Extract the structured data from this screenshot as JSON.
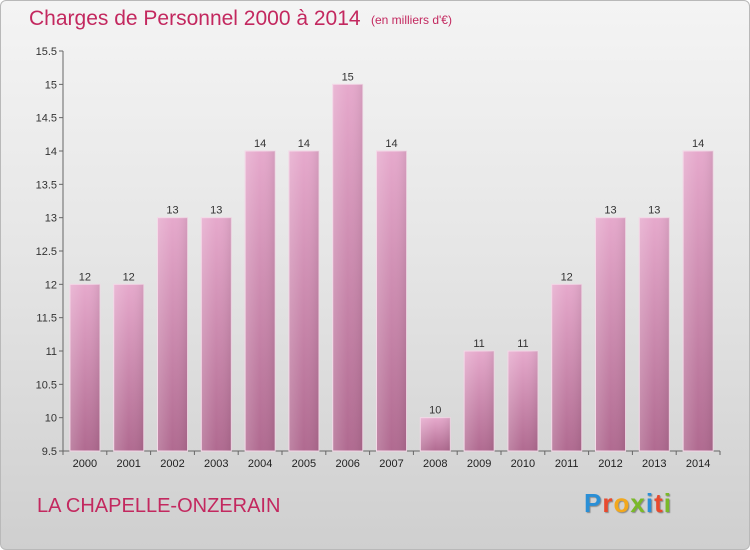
{
  "header": {
    "title": "Charges de Personnel 2000 à 2014",
    "units": "(en milliers d'€)"
  },
  "footer": {
    "town": "LA CHAPELLE-ONZERAIN",
    "brand": "Proxiti"
  },
  "colors": {
    "title": "#c3285f",
    "bar_top": "#e6a9cc",
    "bar_bottom": "#b06a90"
  },
  "chart_data": {
    "type": "bar",
    "title": "Charges de Personnel 2000 à 2014",
    "subtitle": "(en milliers d'€)",
    "categories": [
      "2000",
      "2001",
      "2002",
      "2003",
      "2004",
      "2005",
      "2006",
      "2007",
      "2008",
      "2009",
      "2010",
      "2011",
      "2012",
      "2013",
      "2014"
    ],
    "values": [
      12,
      12,
      13,
      13,
      14,
      14,
      15,
      14,
      10,
      11,
      11,
      12,
      13,
      13,
      14
    ],
    "data_labels": [
      "12",
      "12",
      "13",
      "13",
      "14",
      "14",
      "15",
      "14",
      "10",
      "11",
      "11",
      "12",
      "13",
      "13",
      "14"
    ],
    "ylim": [
      9.5,
      15.5
    ],
    "yticks": [
      9.5,
      10,
      10.5,
      11,
      11.5,
      12,
      12.5,
      13,
      13.5,
      14,
      14.5,
      15,
      15.5
    ],
    "ytick_labels": [
      "9.5",
      "10",
      "10.5",
      "11",
      "11.5",
      "12",
      "12.5",
      "13",
      "13.5",
      "14",
      "14.5",
      "15",
      "15.5"
    ],
    "grid": false,
    "legend": "none"
  }
}
